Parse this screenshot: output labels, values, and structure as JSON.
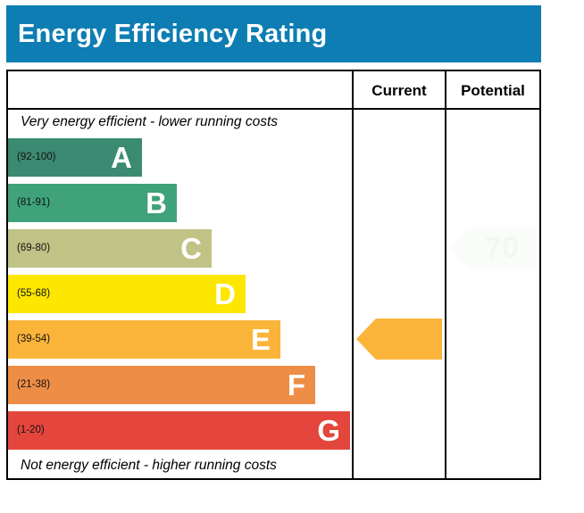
{
  "title": "Energy Efficiency Rating",
  "columns": {
    "current": "Current",
    "potential": "Potential"
  },
  "captions": {
    "top": "Very energy efficient - lower running costs",
    "bottom": "Not energy efficient - higher running costs"
  },
  "colors": {
    "title_bg": "#0d7db3",
    "border": "#000000",
    "A": "#3b8a72",
    "B": "#3fa27b",
    "C": "#c0c286",
    "D": "#fde600",
    "E": "#fbb43a",
    "F": "#ee8d45",
    "G": "#e4463d",
    "potential_arrow": "#fafcfa"
  },
  "chart_data": {
    "type": "bar",
    "title": "Energy Efficiency Rating",
    "categories": [
      "A",
      "B",
      "C",
      "D",
      "E",
      "F",
      "G"
    ],
    "ranges": [
      "(92-100)",
      "(81-91)",
      "(69-80)",
      "(55-68)",
      "(39-54)",
      "(21-38)",
      "(1-20)"
    ],
    "bands": [
      {
        "letter": "A",
        "range": "(92-100)",
        "min": 92,
        "max": 100
      },
      {
        "letter": "B",
        "range": "(81-91)",
        "min": 81,
        "max": 91
      },
      {
        "letter": "C",
        "range": "(69-80)",
        "min": 69,
        "max": 80
      },
      {
        "letter": "D",
        "range": "(55-68)",
        "min": 55,
        "max": 68
      },
      {
        "letter": "E",
        "range": "(39-54)",
        "min": 39,
        "max": 54
      },
      {
        "letter": "F",
        "range": "(21-38)",
        "min": 21,
        "max": 38
      },
      {
        "letter": "G",
        "range": "(1-20)",
        "min": 1,
        "max": 20
      }
    ],
    "current": {
      "band": "E",
      "value": ""
    },
    "potential": {
      "band": "C",
      "value": "70"
    }
  }
}
